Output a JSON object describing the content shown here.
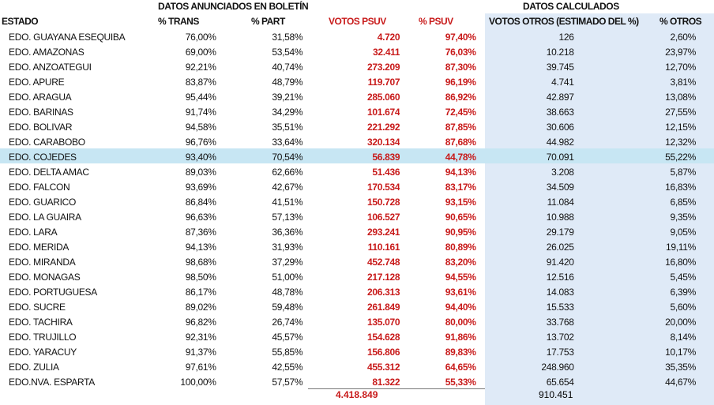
{
  "headers": {
    "group_announced": "DATOS ANUNCIADOS EN BOLETÍN",
    "group_calculated": "DATOS CALCULADOS",
    "estado": "ESTADO",
    "trans": "% TRANS",
    "part": "% PART",
    "votos_psuv": "VOTOS PSUV",
    "pct_psuv": "% PSUV",
    "votos_otros": "VOTOS OTROS (ESTIMADO DEL %)",
    "pct_otros": "% OTROS"
  },
  "rows": [
    {
      "estado": "EDO. GUAYANA ESEQUIBA",
      "trans": "76,00%",
      "part": "31,58%",
      "votos_psuv": "4.720",
      "pct_psuv": "97,40%",
      "votos_otros": "126",
      "pct_otros": "2,60%"
    },
    {
      "estado": "EDO. AMAZONAS",
      "trans": "69,00%",
      "part": "53,54%",
      "votos_psuv": "32.411",
      "pct_psuv": "76,03%",
      "votos_otros": "10.218",
      "pct_otros": "23,97%"
    },
    {
      "estado": "EDO. ANZOATEGUI",
      "trans": "92,21%",
      "part": "40,74%",
      "votos_psuv": "273.209",
      "pct_psuv": "87,30%",
      "votos_otros": "39.745",
      "pct_otros": "12,70%"
    },
    {
      "estado": "EDO. APURE",
      "trans": "83,87%",
      "part": "48,79%",
      "votos_psuv": "119.707",
      "pct_psuv": "96,19%",
      "votos_otros": "4.741",
      "pct_otros": "3,81%"
    },
    {
      "estado": "EDO. ARAGUA",
      "trans": "95,44%",
      "part": "39,21%",
      "votos_psuv": "285.060",
      "pct_psuv": "86,92%",
      "votos_otros": "42.897",
      "pct_otros": "13,08%"
    },
    {
      "estado": "EDO. BARINAS",
      "trans": "91,74%",
      "part": "34,29%",
      "votos_psuv": "101.674",
      "pct_psuv": "72,45%",
      "votos_otros": "38.663",
      "pct_otros": "27,55%"
    },
    {
      "estado": "EDO. BOLIVAR",
      "trans": "94,58%",
      "part": "35,51%",
      "votos_psuv": "221.292",
      "pct_psuv": "87,85%",
      "votos_otros": "30.606",
      "pct_otros": "12,15%"
    },
    {
      "estado": "EDO. CARABOBO",
      "trans": "96,76%",
      "part": "33,64%",
      "votos_psuv": "320.134",
      "pct_psuv": "87,68%",
      "votos_otros": "44.982",
      "pct_otros": "12,32%"
    },
    {
      "estado": "EDO. COJEDES",
      "trans": "93,40%",
      "part": "70,54%",
      "votos_psuv": "56.839",
      "pct_psuv": "44,78%",
      "votos_otros": "70.091",
      "pct_otros": "55,22%"
    },
    {
      "estado": "EDO. DELTA AMAC",
      "trans": "89,03%",
      "part": "62,66%",
      "votos_psuv": "51.436",
      "pct_psuv": "94,13%",
      "votos_otros": "3.208",
      "pct_otros": "5,87%"
    },
    {
      "estado": "EDO. FALCON",
      "trans": "93,69%",
      "part": "42,67%",
      "votos_psuv": "170.534",
      "pct_psuv": "83,17%",
      "votos_otros": "34.509",
      "pct_otros": "16,83%"
    },
    {
      "estado": "EDO. GUARICO",
      "trans": "86,84%",
      "part": "41,51%",
      "votos_psuv": "150.728",
      "pct_psuv": "93,15%",
      "votos_otros": "11.084",
      "pct_otros": "6,85%"
    },
    {
      "estado": "EDO. LA GUAIRA",
      "trans": "96,63%",
      "part": "57,13%",
      "votos_psuv": "106.527",
      "pct_psuv": "90,65%",
      "votos_otros": "10.988",
      "pct_otros": "9,35%"
    },
    {
      "estado": "EDO. LARA",
      "trans": "87,36%",
      "part": "36,36%",
      "votos_psuv": "293.241",
      "pct_psuv": "90,95%",
      "votos_otros": "29.179",
      "pct_otros": "9,05%"
    },
    {
      "estado": "EDO. MERIDA",
      "trans": "94,13%",
      "part": "31,93%",
      "votos_psuv": "110.161",
      "pct_psuv": "80,89%",
      "votos_otros": "26.025",
      "pct_otros": "19,11%"
    },
    {
      "estado": "EDO. MIRANDA",
      "trans": "98,68%",
      "part": "37,29%",
      "votos_psuv": "452.748",
      "pct_psuv": "83,20%",
      "votos_otros": "91.420",
      "pct_otros": "16,80%"
    },
    {
      "estado": "EDO. MONAGAS",
      "trans": "98,50%",
      "part": "51,00%",
      "votos_psuv": "217.128",
      "pct_psuv": "94,55%",
      "votos_otros": "12.516",
      "pct_otros": "5,45%"
    },
    {
      "estado": "EDO. PORTUGUESA",
      "trans": "86,17%",
      "part": "48,78%",
      "votos_psuv": "206.313",
      "pct_psuv": "93,61%",
      "votos_otros": "14.083",
      "pct_otros": "6,39%"
    },
    {
      "estado": "EDO. SUCRE",
      "trans": "89,02%",
      "part": "59,48%",
      "votos_psuv": "261.849",
      "pct_psuv": "94,40%",
      "votos_otros": "15.533",
      "pct_otros": "5,60%"
    },
    {
      "estado": "EDO. TACHIRA",
      "trans": "96,82%",
      "part": "26,74%",
      "votos_psuv": "135.070",
      "pct_psuv": "80,00%",
      "votos_otros": "33.768",
      "pct_otros": "20,00%"
    },
    {
      "estado": "EDO. TRUJILLO",
      "trans": "92,31%",
      "part": "45,57%",
      "votos_psuv": "154.628",
      "pct_psuv": "91,86%",
      "votos_otros": "13.702",
      "pct_otros": "8,14%"
    },
    {
      "estado": "EDO. YARACUY",
      "trans": "91,37%",
      "part": "55,85%",
      "votos_psuv": "156.806",
      "pct_psuv": "89,83%",
      "votos_otros": "17.753",
      "pct_otros": "10,17%"
    },
    {
      "estado": "EDO. ZULIA",
      "trans": "97,61%",
      "part": "42,55%",
      "votos_psuv": "455.312",
      "pct_psuv": "64,65%",
      "votos_otros": "248.960",
      "pct_otros": "35,35%"
    },
    {
      "estado": "EDO.NVA. ESPARTA",
      "trans": "100,00%",
      "part": "57,57%",
      "votos_psuv": "81.322",
      "pct_psuv": "55,33%",
      "votos_otros": "65.654",
      "pct_otros": "44,67%"
    }
  ],
  "highlighted_row": 8,
  "totals": {
    "votos_psuv": "4.418.849",
    "votos_otros": "910.451"
  },
  "colors": {
    "psuv_red": "#c81a1a",
    "calculated_bg": "#dfeaf7",
    "highlight_row_bg": "#c7e6f3"
  }
}
